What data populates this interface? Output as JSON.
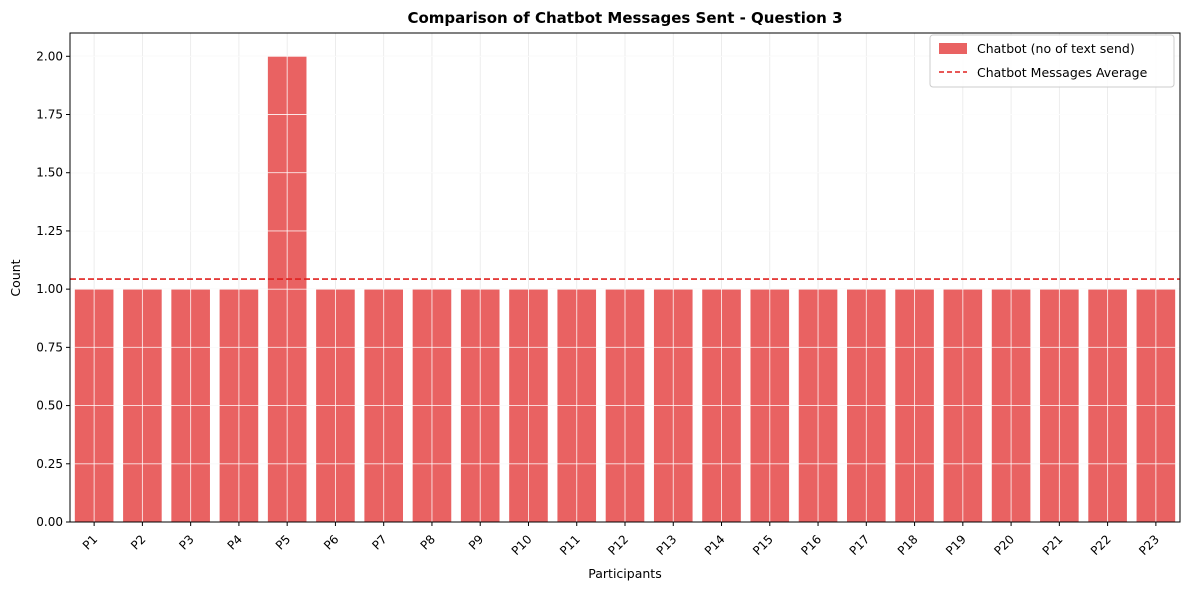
{
  "chart_data": {
    "type": "bar",
    "title": "Comparison of Chatbot Messages Sent - Question 3",
    "xlabel": "Participants",
    "ylabel": "Count",
    "categories": [
      "P1",
      "P2",
      "P3",
      "P4",
      "P5",
      "P6",
      "P7",
      "P8",
      "P9",
      "P10",
      "P11",
      "P12",
      "P13",
      "P14",
      "P15",
      "P16",
      "P17",
      "P18",
      "P19",
      "P20",
      "P21",
      "P22",
      "P23"
    ],
    "series": [
      {
        "name": "Chatbot (no of text send)",
        "values": [
          1,
          1,
          1,
          1,
          2,
          1,
          1,
          1,
          1,
          1,
          1,
          1,
          1,
          1,
          1,
          1,
          1,
          1,
          1,
          1,
          1,
          1,
          1
        ],
        "color": "#e96262"
      }
    ],
    "reference_line": {
      "name": "Chatbot Messages Average",
      "value": 1.0435,
      "color": "#e0201e",
      "style": "dashed"
    },
    "ylim": [
      0,
      2.1
    ],
    "yticks": [
      "0.00",
      "0.25",
      "0.50",
      "0.75",
      "1.00",
      "1.25",
      "1.50",
      "1.75",
      "2.00"
    ],
    "grid": true,
    "legend_position": "top-right"
  }
}
